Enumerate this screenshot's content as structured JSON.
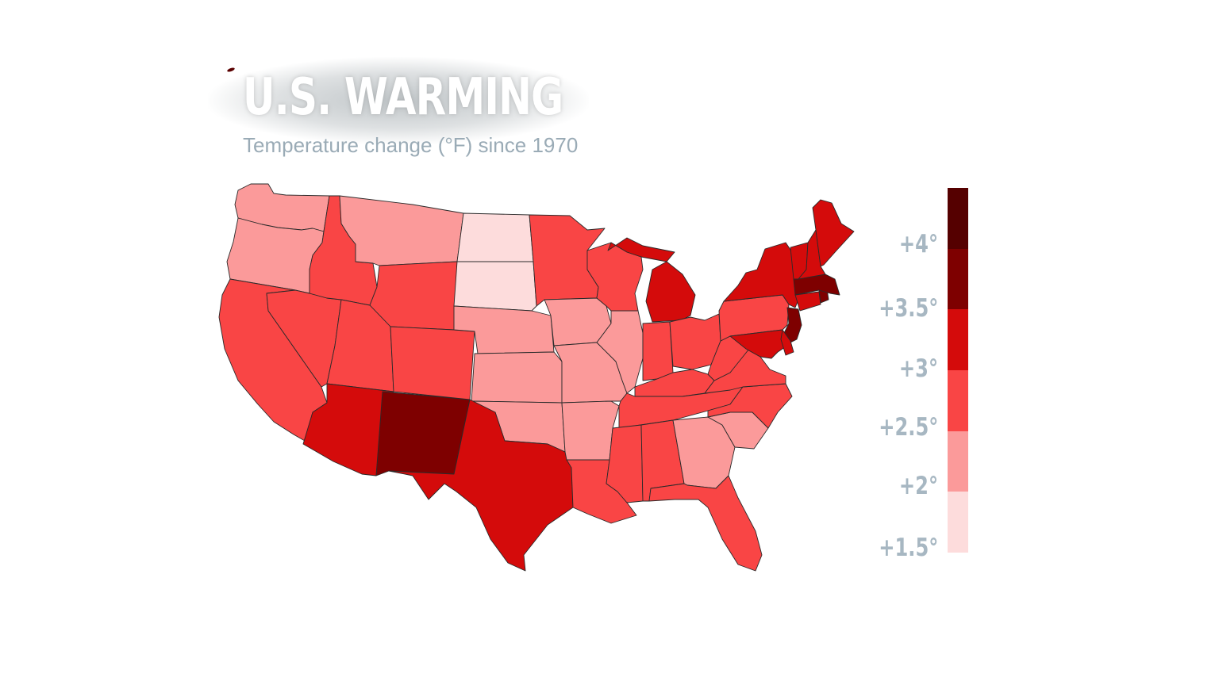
{
  "title": "U.S. WARMING",
  "subtitle": "Temperature change (°F) since 1970",
  "legend": {
    "labels": [
      "+4°",
      "+3.5°",
      "+3°",
      "+2.5°",
      "+2°",
      "+1.5°"
    ],
    "bins": [
      {
        "min": 1.5,
        "max": 2.0,
        "color": "#fddcdc"
      },
      {
        "min": 2.0,
        "max": 2.5,
        "color": "#fb9a9a"
      },
      {
        "min": 2.5,
        "max": 3.0,
        "color": "#f94545"
      },
      {
        "min": 3.0,
        "max": 3.5,
        "color": "#d40b0b"
      },
      {
        "min": 3.5,
        "max": 4.0,
        "color": "#7e0000"
      },
      {
        "min": 4.0,
        "max": 4.5,
        "color": "#550000"
      }
    ]
  },
  "states": {
    "WA": 2.2,
    "OR": 2.2,
    "CA": 2.7,
    "NV": 2.7,
    "ID": 2.7,
    "MT": 2.2,
    "WY": 2.7,
    "UT": 2.7,
    "AZ": 3.2,
    "NM": 3.7,
    "CO": 2.7,
    "ND": 1.8,
    "SD": 1.8,
    "NE": 2.2,
    "KS": 2.2,
    "OK": 2.2,
    "TX": 3.2,
    "MN": 2.7,
    "IA": 2.2,
    "MO": 2.2,
    "AR": 2.2,
    "LA": 2.7,
    "WI": 2.7,
    "IL": 2.2,
    "MI": 3.2,
    "IN": 2.7,
    "OH": 2.7,
    "KY": 2.7,
    "TN": 2.7,
    "MS": 2.7,
    "AL": 2.7,
    "GA": 2.2,
    "FL": 2.7,
    "SC": 2.2,
    "NC": 2.7,
    "VA": 2.7,
    "WV": 2.7,
    "PA": 2.7,
    "NY": 3.2,
    "MD": 3.2,
    "DE": 3.2,
    "NJ": 3.7,
    "CT": 3.2,
    "RI": 3.7,
    "MA": 3.7,
    "VT": 3.2,
    "NH": 3.2,
    "ME": 3.2
  }
}
